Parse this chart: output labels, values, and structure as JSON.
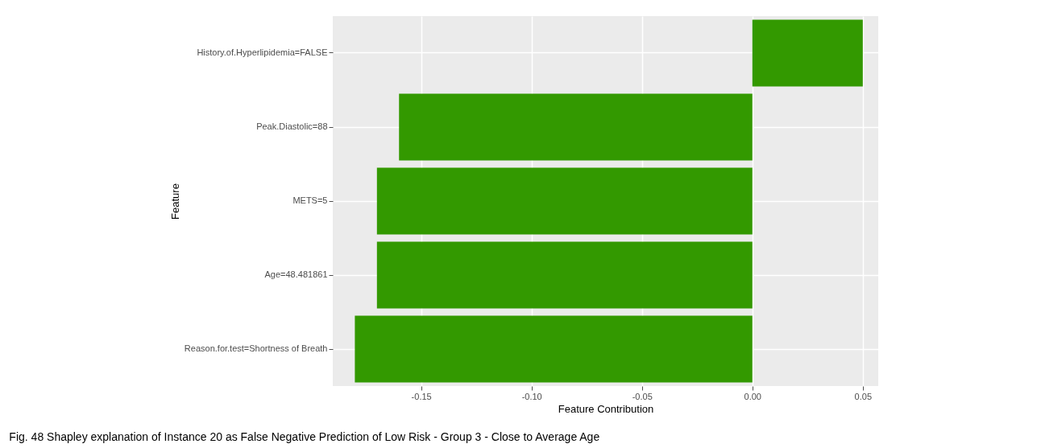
{
  "chart_data": {
    "type": "bar",
    "orientation": "horizontal",
    "xlabel": "Feature Contribution",
    "ylabel": "Feature",
    "categories": [
      "History.of.Hyperlipidemia=FALSE",
      "Peak.Diastolic=88",
      "METS=5",
      "Age=48.481861",
      "Reason.for.test=Shortness of Breath"
    ],
    "series": [
      {
        "color": "#339900",
        "values": [
          0.05,
          -0.16,
          -0.17,
          -0.17,
          -0.18
        ]
      }
    ],
    "xlim": [
      -0.19,
      0.057
    ],
    "xticks": [
      {
        "value": -0.15,
        "label": "-0.15"
      },
      {
        "value": -0.1,
        "label": "-0.10"
      },
      {
        "value": -0.05,
        "label": "-0.05"
      },
      {
        "value": 0,
        "label": "0.00"
      },
      {
        "value": 0.05,
        "label": "0.05"
      }
    ],
    "grid": true,
    "legend": false,
    "annotations": [
      "Fig. 48 Shapley explanation of Instance 20 as False Negative Prediction of Low Risk - Group 3 - Close to Average Age"
    ]
  }
}
